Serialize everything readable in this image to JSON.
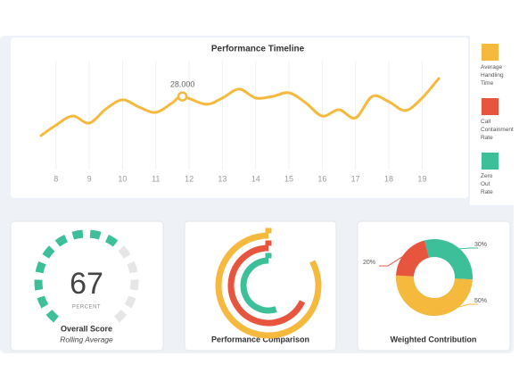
{
  "chart_data": [
    {
      "type": "line",
      "title": "Performance Timeline",
      "x": [
        7.55,
        8,
        8.5,
        9,
        9.5,
        10,
        10.5,
        11,
        11.5,
        11.8,
        12.5,
        13,
        13.5,
        14,
        14.5,
        15,
        15.5,
        16,
        16.5,
        17,
        17.5,
        18,
        18.5,
        19,
        19.5
      ],
      "series": [
        {
          "name": "Average Handling Time",
          "color": "#f4b93d",
          "values": [
            13,
            17,
            20.5,
            17.8,
            23.2,
            26.7,
            23.9,
            21.9,
            25.6,
            28,
            25,
            27.4,
            30.8,
            27.4,
            28,
            29.4,
            25.6,
            20.5,
            22.9,
            19.8,
            28,
            26,
            22.6,
            27.4,
            34.9
          ]
        }
      ],
      "legend": [
        {
          "name": "Average Handling Time",
          "color": "#f4b93d"
        },
        {
          "name": "Call Containment Rate",
          "color": "#e8553f"
        },
        {
          "name": "Zero Out Rate",
          "color": "#3dbf9a"
        }
      ],
      "annotation": {
        "x": 11.8,
        "value": 28,
        "label": "28.000"
      },
      "xlim": [
        7.55,
        19.5
      ],
      "xticks": [
        8,
        9,
        10,
        11,
        12,
        13,
        14,
        15,
        16,
        17,
        18,
        19
      ],
      "ylim": [
        0,
        40
      ],
      "grid": true
    },
    {
      "type": "gauge",
      "title": "Overall Score",
      "subtitle": "Rolling Average",
      "value": 67,
      "unit": "PERCENT",
      "ylim": [
        0,
        100
      ],
      "color": "#3dbf9a",
      "track_color": "#e6e6e6"
    },
    {
      "type": "radial_bar",
      "title": "Performance Comparison",
      "values": [
        83,
        68,
        55
      ],
      "colors": [
        "#f4b93d",
        "#e8553f",
        "#3dbf9a"
      ],
      "ylim": [
        0,
        100
      ]
    },
    {
      "type": "donut",
      "title": "Weighted Contribution",
      "values": [
        30,
        50,
        20
      ],
      "value_labels": [
        "30%",
        "50%",
        "20%"
      ],
      "colors": [
        "#3dbf9a",
        "#f4b93d",
        "#e8553f"
      ]
    }
  ]
}
